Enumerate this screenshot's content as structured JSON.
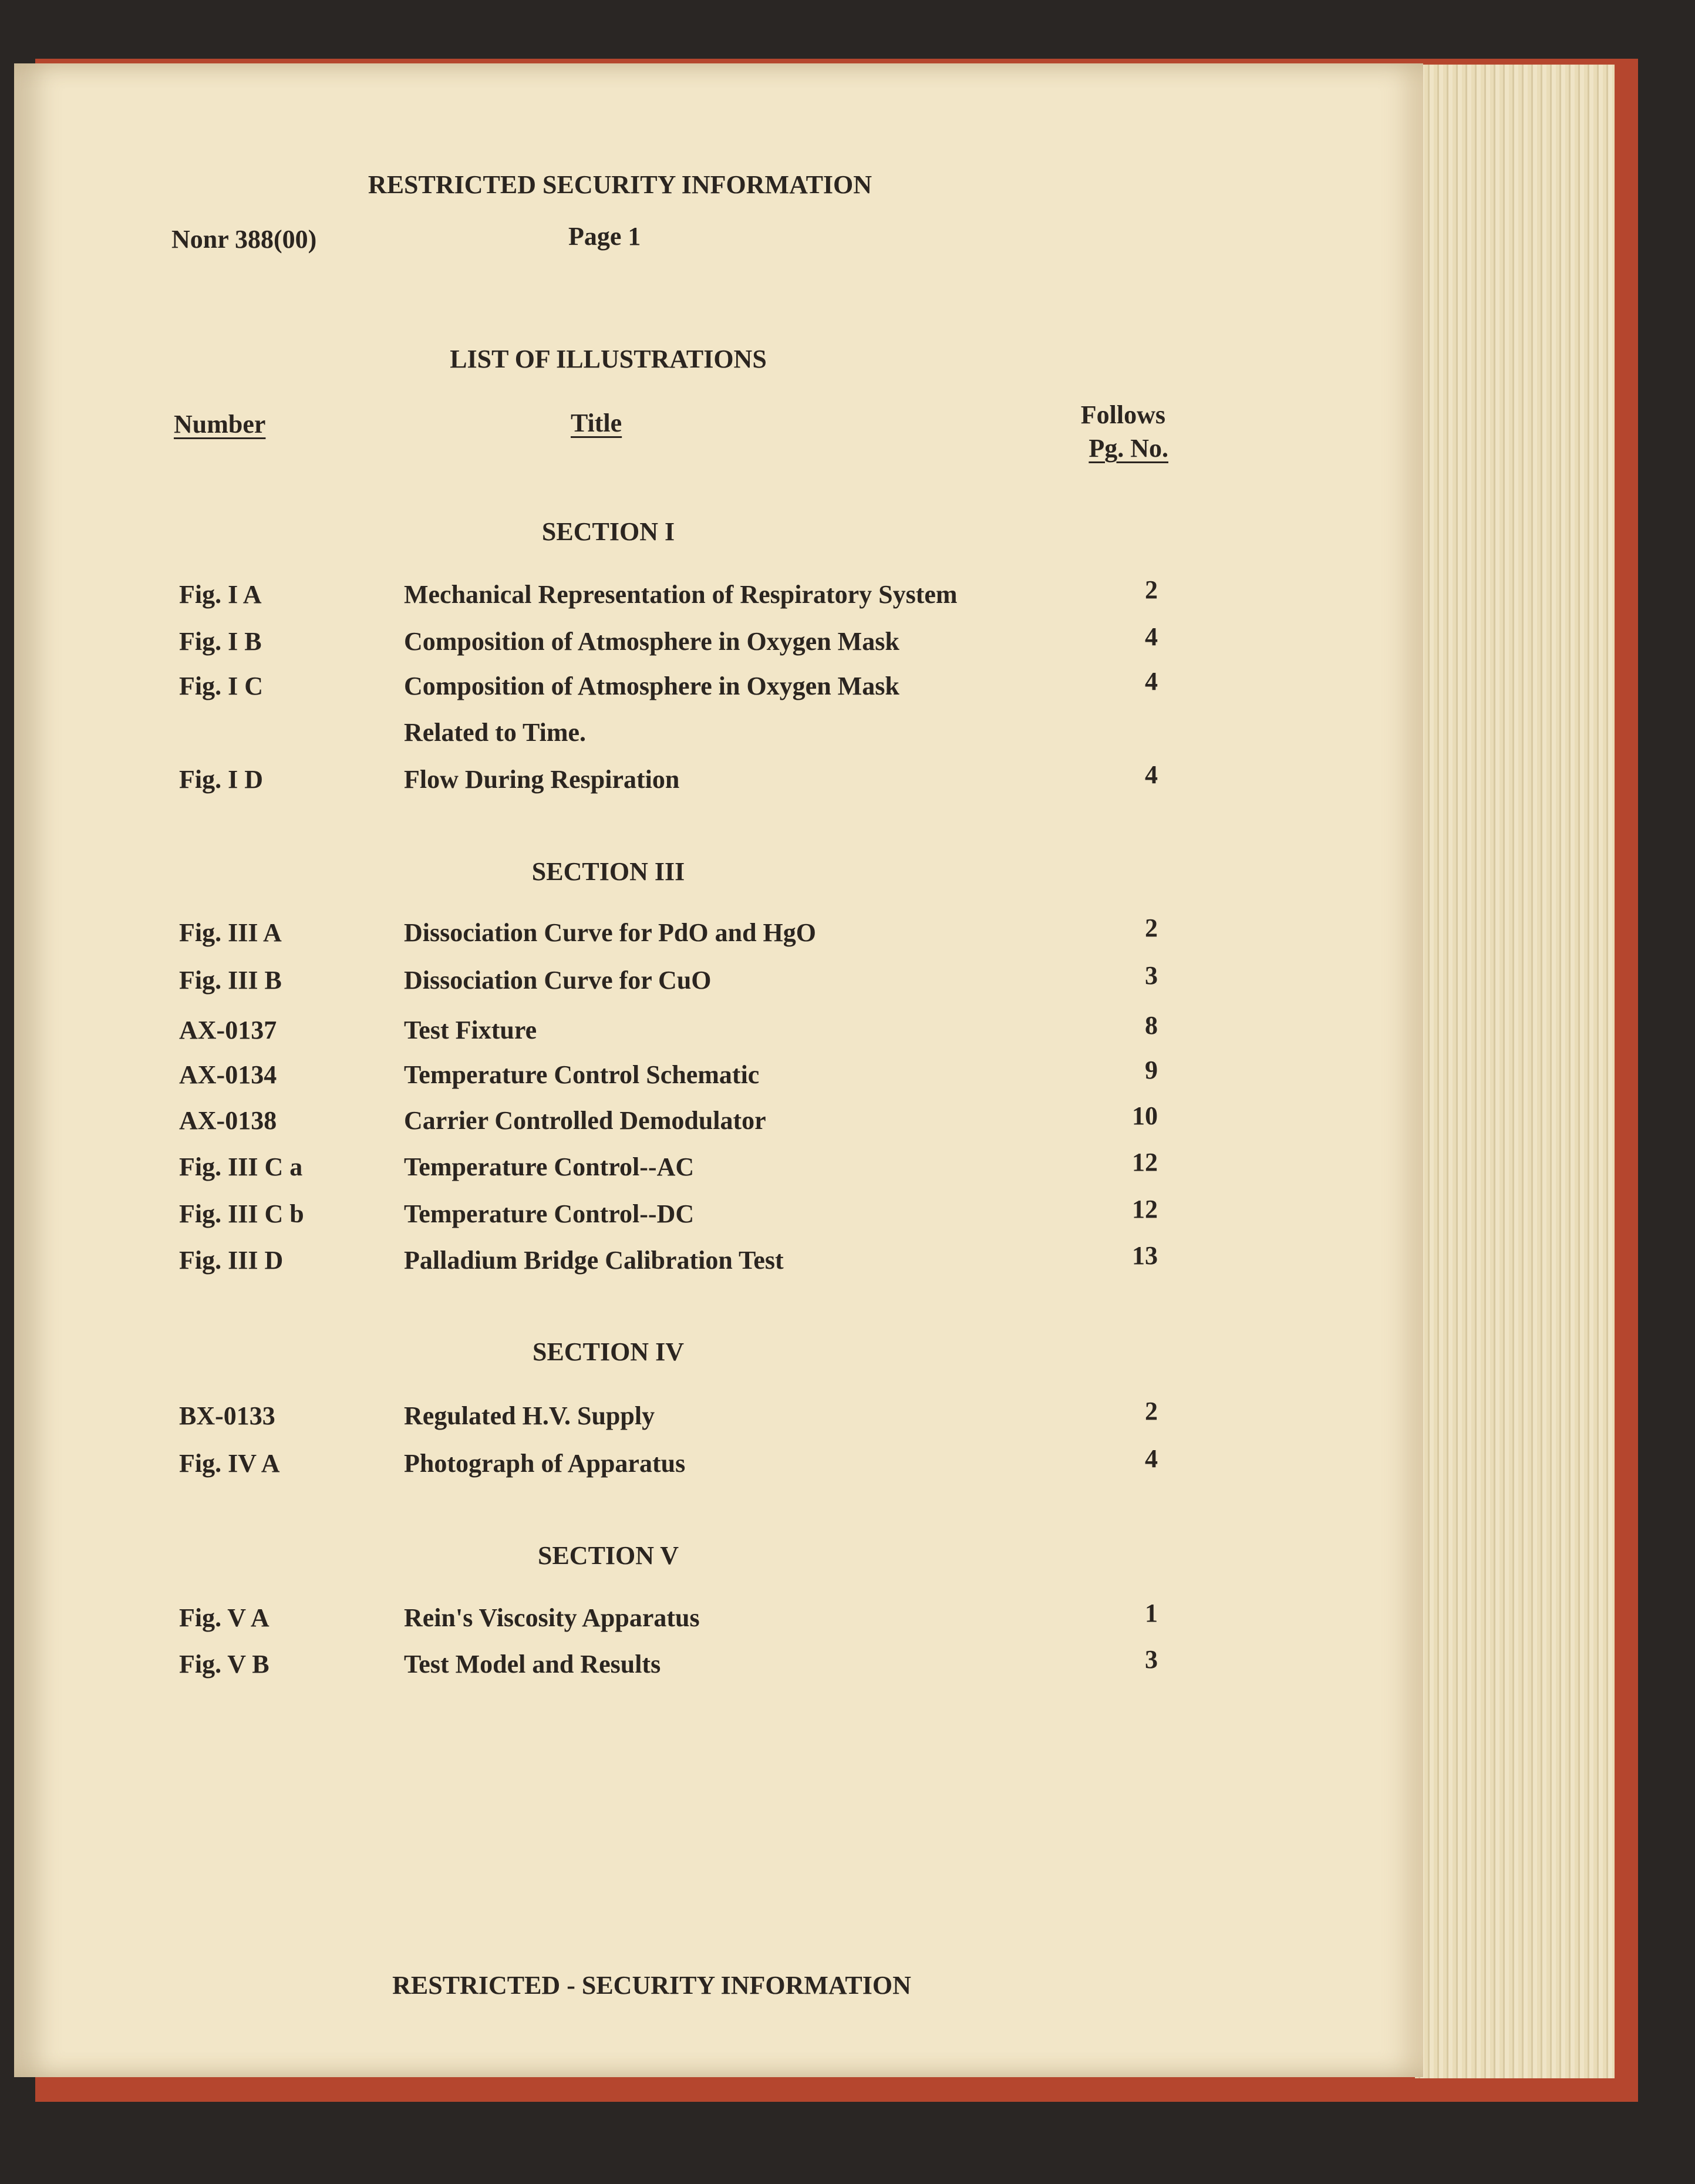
{
  "header": {
    "classification": "RESTRICTED SECURITY INFORMATION",
    "contract": "Nonr 388(00)",
    "page": "Page 1"
  },
  "title": "LIST OF ILLUSTRATIONS",
  "columns": {
    "number": "Number",
    "title": "Title",
    "page_line1": "Follows",
    "page_line2": "Pg. No."
  },
  "sections": [
    {
      "heading": "SECTION I",
      "entries": [
        {
          "number": "Fig. I A",
          "title": "Mechanical Representation of Respiratory System",
          "page": 2
        },
        {
          "number": "Fig. I B",
          "title": "Composition of Atmosphere in Oxygen Mask",
          "page": 4
        },
        {
          "number": "Fig. I C",
          "title": "Composition of Atmosphere in Oxygen Mask",
          "title_line2": "Related to Time.",
          "page": 4
        },
        {
          "number": "Fig. I D",
          "title": "Flow During Respiration",
          "page": 4
        }
      ]
    },
    {
      "heading": "SECTION III",
      "entries": [
        {
          "number": "Fig. III A",
          "title": "Dissociation Curve for PdO and HgO",
          "page": 2
        },
        {
          "number": "Fig. III B",
          "title": "Dissociation Curve for CuO",
          "page": 3
        },
        {
          "number": "AX-0137",
          "title": "Test Fixture",
          "page": 8
        },
        {
          "number": "AX-0134",
          "title": "Temperature Control Schematic",
          "page": 9
        },
        {
          "number": "AX-0138",
          "title": "Carrier Controlled Demodulator",
          "page": 10
        },
        {
          "number": "Fig. III C a",
          "title": "Temperature Control--AC",
          "page": 12
        },
        {
          "number": "Fig. III C b",
          "title": "Temperature Control--DC",
          "page": 12
        },
        {
          "number": "Fig. III D",
          "title": "Palladium Bridge Calibration Test",
          "page": 13
        }
      ]
    },
    {
      "heading": "SECTION IV",
      "entries": [
        {
          "number": "BX-0133",
          "title": "Regulated H.V. Supply",
          "page": 2
        },
        {
          "number": "Fig. IV A",
          "title": "Photograph of Apparatus",
          "page": 4
        }
      ]
    },
    {
      "heading": "SECTION V",
      "entries": [
        {
          "number": "Fig. V A",
          "title": "Rein's Viscosity Apparatus",
          "page": 1
        },
        {
          "number": "Fig. V B",
          "title": "Test Model and Results",
          "page": 3
        }
      ]
    }
  ],
  "footer": "RESTRICTED - SECURITY INFORMATION"
}
